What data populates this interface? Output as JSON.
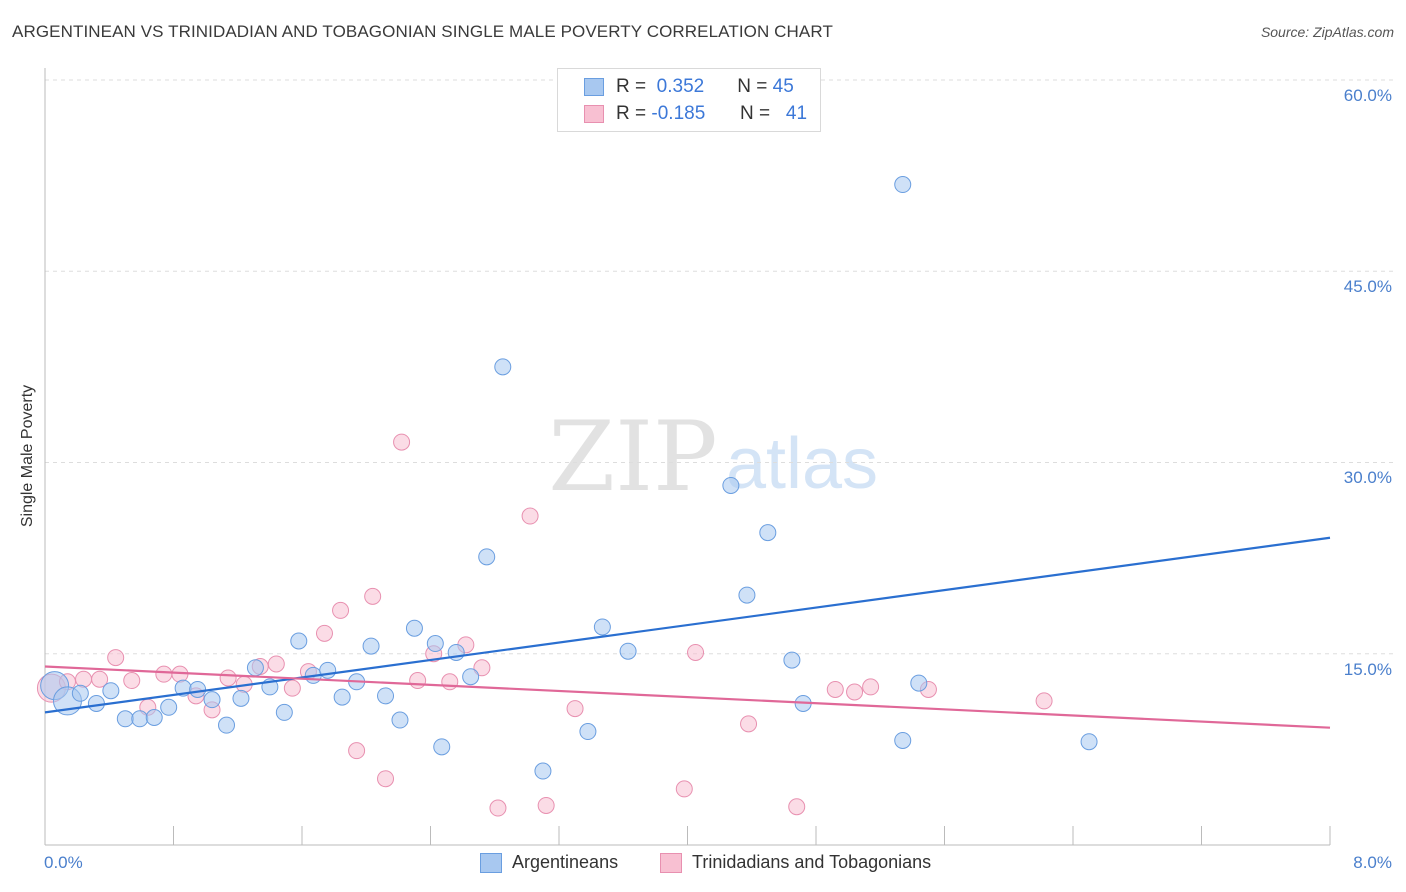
{
  "header": {
    "title": "ARGENTINEAN VS TRINIDADIAN AND TOBAGONIAN SINGLE MALE POVERTY CORRELATION CHART",
    "source": "Source: ZipAtlas.com"
  },
  "watermark": {
    "zip": "ZIP",
    "atlas": "atlas"
  },
  "legend": {
    "rows": [
      {
        "r_label": "R =",
        "r_value": "0.352",
        "n_label": "N =",
        "n_value": "45",
        "color": "#a8c8f0",
        "border": "#6a9ee0"
      },
      {
        "r_label": "R =",
        "r_value": "-0.185",
        "n_label": "N =",
        "n_value": "41",
        "color": "#f8c0d2",
        "border": "#e890b0"
      }
    ]
  },
  "bottom_legend": [
    {
      "label": "Argentineans",
      "color": "#a8c8f0",
      "border": "#6a9ee0"
    },
    {
      "label": "Trinidadians and Tobagonians",
      "color": "#f8c0d2",
      "border": "#e890b0"
    }
  ],
  "colors": {
    "blue_point_fill": "rgba(168,200,240,0.55)",
    "blue_point_stroke": "#6a9ee0",
    "pink_point_fill": "rgba(248,192,210,0.55)",
    "pink_point_stroke": "#e890b0",
    "blue_line": "#2a6fd0",
    "pink_line": "#e06898",
    "grid": "#dddddd",
    "axis": "#bbbbbb",
    "tick_label": "#4a7fcc"
  },
  "chart_data": {
    "type": "scatter",
    "title": "ARGENTINEAN VS TRINIDADIAN AND TOBAGONIAN SINGLE MALE POVERTY CORRELATION CHART",
    "xlabel": "",
    "ylabel": "Single Male Poverty",
    "xlim": [
      0,
      8
    ],
    "ylim": [
      0,
      60
    ],
    "x_tick_labels": [
      "0.0%",
      "8.0%"
    ],
    "y_ticks": [
      15,
      30,
      45,
      60
    ],
    "y_tick_labels": [
      "15.0%",
      "30.0%",
      "45.0%",
      "60.0%"
    ],
    "grid": true,
    "legend_position": "top-center",
    "series": [
      {
        "name": "Argentineans",
        "r": 0.352,
        "n": 45,
        "trend": {
          "x": [
            0,
            8
          ],
          "y": [
            10.4,
            24.1
          ]
        },
        "points": [
          {
            "x": 0.06,
            "y": 12.5,
            "big": true
          },
          {
            "x": 0.14,
            "y": 11.3,
            "big": true
          },
          {
            "x": 0.22,
            "y": 11.9
          },
          {
            "x": 0.32,
            "y": 11.1
          },
          {
            "x": 0.41,
            "y": 12.1
          },
          {
            "x": 0.5,
            "y": 9.9
          },
          {
            "x": 0.59,
            "y": 9.9
          },
          {
            "x": 0.68,
            "y": 10.0
          },
          {
            "x": 0.77,
            "y": 10.8
          },
          {
            "x": 0.86,
            "y": 12.3
          },
          {
            "x": 0.95,
            "y": 12.2
          },
          {
            "x": 1.04,
            "y": 11.4
          },
          {
            "x": 1.13,
            "y": 9.4
          },
          {
            "x": 1.22,
            "y": 11.5
          },
          {
            "x": 1.31,
            "y": 13.9
          },
          {
            "x": 1.4,
            "y": 12.4
          },
          {
            "x": 1.49,
            "y": 10.4
          },
          {
            "x": 1.58,
            "y": 16.0
          },
          {
            "x": 1.67,
            "y": 13.3
          },
          {
            "x": 1.76,
            "y": 13.7
          },
          {
            "x": 1.85,
            "y": 11.6
          },
          {
            "x": 1.94,
            "y": 12.8
          },
          {
            "x": 2.03,
            "y": 15.6
          },
          {
            "x": 2.12,
            "y": 11.7
          },
          {
            "x": 2.21,
            "y": 9.8
          },
          {
            "x": 2.3,
            "y": 17.0
          },
          {
            "x": 2.43,
            "y": 15.8
          },
          {
            "x": 2.47,
            "y": 7.7
          },
          {
            "x": 2.56,
            "y": 15.1
          },
          {
            "x": 2.65,
            "y": 13.2
          },
          {
            "x": 2.75,
            "y": 22.6
          },
          {
            "x": 2.85,
            "y": 37.5
          },
          {
            "x": 3.1,
            "y": 5.8
          },
          {
            "x": 3.38,
            "y": 8.9
          },
          {
            "x": 3.47,
            "y": 17.1
          },
          {
            "x": 3.63,
            "y": 15.2
          },
          {
            "x": 4.27,
            "y": 28.2
          },
          {
            "x": 4.37,
            "y": 19.6
          },
          {
            "x": 4.5,
            "y": 24.5
          },
          {
            "x": 4.65,
            "y": 14.5
          },
          {
            "x": 4.72,
            "y": 11.1
          },
          {
            "x": 5.34,
            "y": 8.2
          },
          {
            "x": 5.34,
            "y": 51.8
          },
          {
            "x": 5.44,
            "y": 12.7
          },
          {
            "x": 6.5,
            "y": 8.1
          }
        ]
      },
      {
        "name": "Trinidadians and Tobagonians",
        "r": -0.185,
        "n": 41,
        "trend": {
          "x": [
            0,
            8
          ],
          "y": [
            14.0,
            9.2
          ]
        },
        "points": [
          {
            "x": 0.04,
            "y": 12.3,
            "big": true
          },
          {
            "x": 0.14,
            "y": 12.8
          },
          {
            "x": 0.24,
            "y": 13.0
          },
          {
            "x": 0.34,
            "y": 13.0
          },
          {
            "x": 0.44,
            "y": 14.7
          },
          {
            "x": 0.54,
            "y": 12.9
          },
          {
            "x": 0.64,
            "y": 10.8
          },
          {
            "x": 0.74,
            "y": 13.4
          },
          {
            "x": 0.84,
            "y": 13.4
          },
          {
            "x": 0.94,
            "y": 11.7
          },
          {
            "x": 1.04,
            "y": 10.6
          },
          {
            "x": 1.14,
            "y": 13.1
          },
          {
            "x": 1.24,
            "y": 12.6
          },
          {
            "x": 1.34,
            "y": 14.0
          },
          {
            "x": 1.44,
            "y": 14.2
          },
          {
            "x": 1.54,
            "y": 12.3
          },
          {
            "x": 1.64,
            "y": 13.6
          },
          {
            "x": 1.74,
            "y": 16.6
          },
          {
            "x": 1.84,
            "y": 18.4
          },
          {
            "x": 1.94,
            "y": 7.4
          },
          {
            "x": 2.04,
            "y": 19.5
          },
          {
            "x": 2.12,
            "y": 5.2
          },
          {
            "x": 2.22,
            "y": 31.6
          },
          {
            "x": 2.32,
            "y": 12.9
          },
          {
            "x": 2.42,
            "y": 15.0
          },
          {
            "x": 2.52,
            "y": 12.8
          },
          {
            "x": 2.62,
            "y": 15.7
          },
          {
            "x": 2.72,
            "y": 13.9
          },
          {
            "x": 2.82,
            "y": 2.9
          },
          {
            "x": 3.02,
            "y": 25.8
          },
          {
            "x": 3.12,
            "y": 3.1
          },
          {
            "x": 3.3,
            "y": 10.7
          },
          {
            "x": 3.98,
            "y": 4.4
          },
          {
            "x": 4.05,
            "y": 15.1
          },
          {
            "x": 4.38,
            "y": 9.5
          },
          {
            "x": 4.68,
            "y": 3.0
          },
          {
            "x": 4.92,
            "y": 12.2
          },
          {
            "x": 5.04,
            "y": 12.0
          },
          {
            "x": 5.14,
            "y": 12.4
          },
          {
            "x": 5.5,
            "y": 12.2
          },
          {
            "x": 6.22,
            "y": 11.3
          }
        ]
      }
    ]
  }
}
